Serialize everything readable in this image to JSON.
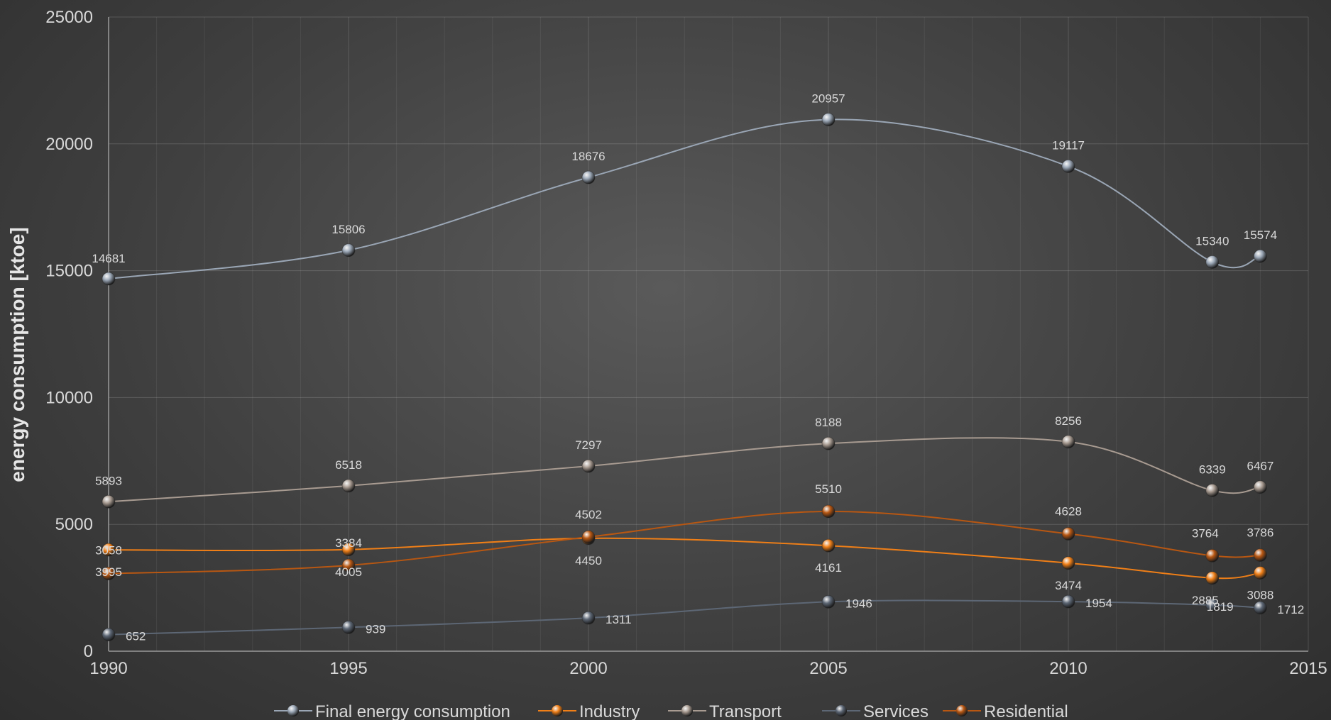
{
  "chart_data": {
    "type": "line",
    "ylabel": "energy consumption [ktoe]",
    "xlabel": "",
    "xlim": [
      1990,
      2015
    ],
    "ylim": [
      0,
      25000
    ],
    "xticks": [
      1990,
      1995,
      2000,
      2005,
      2010,
      2015
    ],
    "yticks": [
      0,
      5000,
      10000,
      15000,
      20000,
      25000
    ],
    "grid": true,
    "legend": "bottom",
    "x": [
      1990,
      1995,
      2000,
      2005,
      2010,
      2013,
      2014
    ],
    "series": [
      {
        "name": "Final energy consumption",
        "color": "#9aa6b5",
        "values": [
          14681,
          15806,
          18676,
          20957,
          19117,
          15340,
          15574
        ],
        "labels": [
          "14681",
          "15806",
          "18676",
          "20957",
          "19117",
          "15340",
          "15574"
        ]
      },
      {
        "name": "Industry",
        "color": "#f07f17",
        "values": [
          3995,
          4005,
          4450,
          4161,
          3474,
          2885,
          3088
        ],
        "labels": [
          "3995",
          "4005",
          "4450",
          "4161",
          "3474",
          "2885",
          "3088"
        ]
      },
      {
        "name": "Transport",
        "color": "#a89b91",
        "values": [
          5893,
          6518,
          7297,
          8188,
          8256,
          6339,
          6467
        ],
        "labels": [
          "5893",
          "6518",
          "7297",
          "8188",
          "8256",
          "6339",
          "6467"
        ]
      },
      {
        "name": "Services",
        "color": "#5d6775",
        "values": [
          652,
          939,
          1311,
          1946,
          1954,
          1819,
          1712
        ],
        "labels": [
          "652",
          "939",
          "1311",
          "1946",
          "1954",
          "1819",
          "1712"
        ]
      },
      {
        "name": "Residential",
        "color": "#b85712",
        "values": [
          3058,
          3384,
          4502,
          5510,
          4628,
          3764,
          3786
        ],
        "labels": [
          "3058",
          "3384",
          "4502",
          "5510",
          "4628",
          "3764",
          "3786"
        ]
      }
    ]
  }
}
